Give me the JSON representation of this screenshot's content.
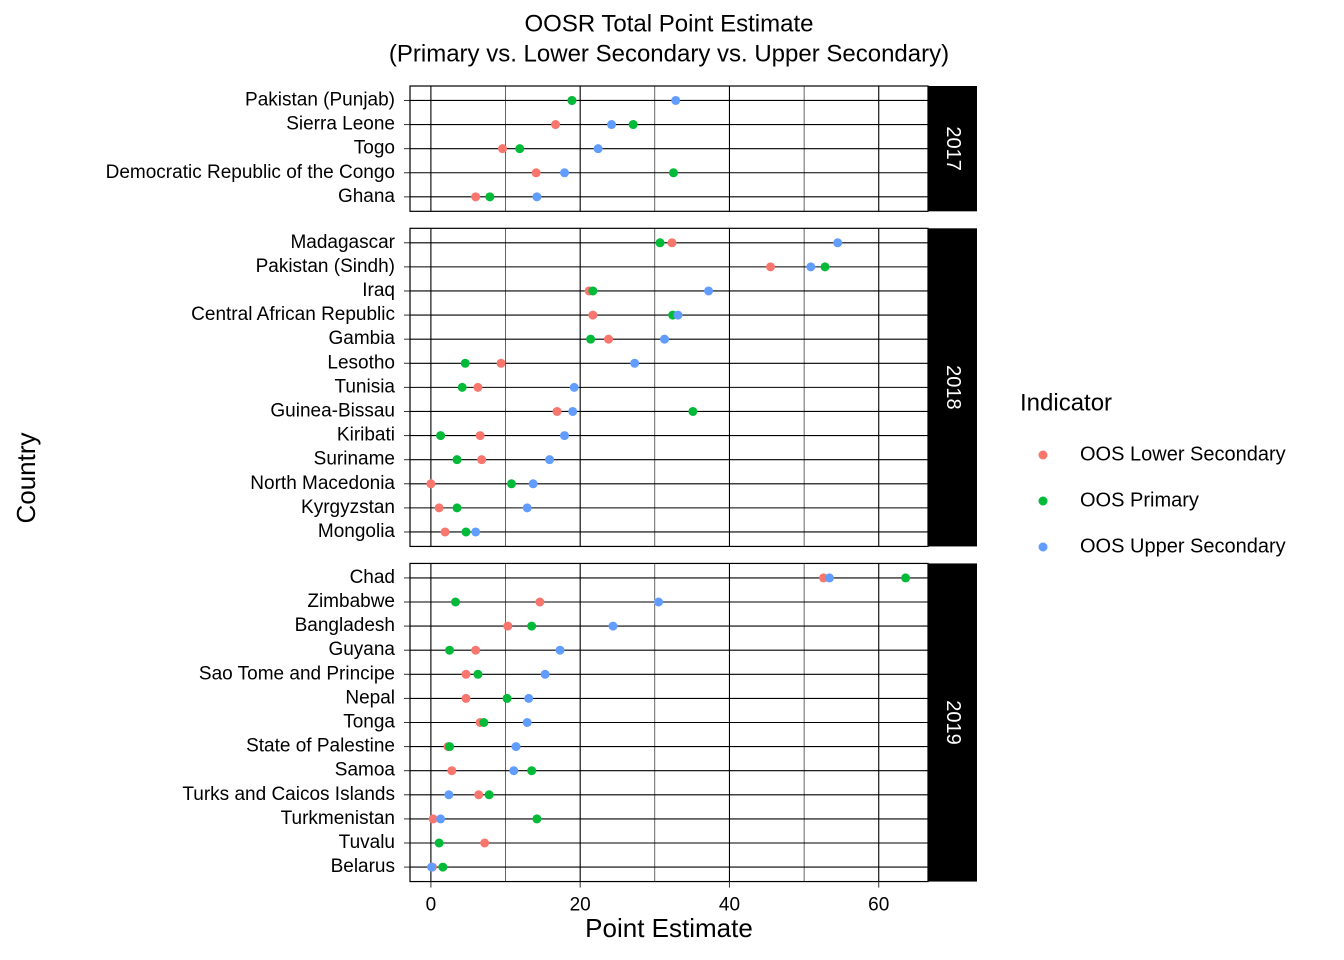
{
  "chart_data": {
    "type": "dot",
    "title": [
      "OOSR Total Point Estimate",
      "(Primary vs. Lower Secondary vs. Upper Secondary)"
    ],
    "x_label": "Point Estimate",
    "y_label": "Country",
    "legend_title": "Indicator",
    "xlim": [
      -2.8,
      66.6
    ],
    "xticks": [
      0,
      20,
      40,
      60
    ],
    "minor_xticks": [
      10,
      30,
      50
    ],
    "grid": true,
    "legend_position": "right",
    "series": [
      {
        "name": "OOS Lower Secondary",
        "color": "#F8766D"
      },
      {
        "name": "OOS Primary",
        "color": "#00BA38"
      },
      {
        "name": "OOS Upper Secondary",
        "color": "#619CFF"
      }
    ],
    "facets": [
      {
        "label": "2017",
        "categories": [
          "Pakistan (Punjab)",
          "Sierra Leone",
          "Togo",
          "Democratic Republic of the Congo",
          "Ghana"
        ],
        "series": [
          {
            "values": [
              18.9,
              16.7,
              9.6,
              14.1,
              6.0
            ]
          },
          {
            "values": [
              18.9,
              27.1,
              11.9,
              32.5,
              7.9
            ]
          },
          {
            "values": [
              32.8,
              24.2,
              22.4,
              17.9,
              14.2
            ]
          }
        ]
      },
      {
        "label": "2018",
        "categories": [
          "Madagascar",
          "Pakistan (Sindh)",
          "Iraq",
          "Central African Republic",
          "Gambia",
          "Lesotho",
          "Tunisia",
          "Guinea-Bissau",
          "Kiribati",
          "Suriname",
          "North Macedonia",
          "Kyrgyzstan",
          "Mongolia"
        ],
        "series": [
          {
            "values": [
              32.3,
              45.5,
              21.2,
              21.7,
              23.8,
              9.4,
              6.3,
              16.9,
              6.6,
              6.8,
              0,
              1.1,
              1.9
            ]
          },
          {
            "values": [
              30.7,
              52.8,
              21.7,
              32.4,
              21.4,
              4.6,
              4.2,
              35.1,
              1.3,
              3.5,
              10.8,
              3.5,
              4.7
            ]
          },
          {
            "values": [
              54.5,
              50.9,
              37.2,
              33.1,
              31.3,
              27.3,
              19.2,
              19.0,
              17.9,
              15.9,
              13.7,
              12.9,
              6.0
            ]
          }
        ]
      },
      {
        "label": "2019",
        "categories": [
          "Chad",
          "Zimbabwe",
          "Bangladesh",
          "Guyana",
          "Sao Tome and Principe",
          "Nepal",
          "Tonga",
          "State of Palestine",
          "Samoa",
          "Turks and Caicos Islands",
          "Turkmenistan",
          "Tuvalu",
          "Belarus"
        ],
        "series": [
          {
            "values": [
              52.6,
              14.6,
              10.3,
              6.0,
              4.7,
              4.7,
              6.6,
              2.3,
              2.8,
              6.4,
              0.3,
              7.2,
              0.2
            ]
          },
          {
            "values": [
              63.6,
              3.3,
              13.5,
              2.5,
              6.3,
              10.2,
              7.1,
              2.5,
              13.5,
              7.8,
              14.2,
              1.1,
              1.6
            ]
          },
          {
            "values": [
              53.4,
              30.5,
              24.4,
              17.3,
              15.3,
              13.1,
              12.9,
              11.4,
              11.1,
              2.4,
              1.3,
              null,
              0.1
            ]
          }
        ]
      }
    ]
  }
}
